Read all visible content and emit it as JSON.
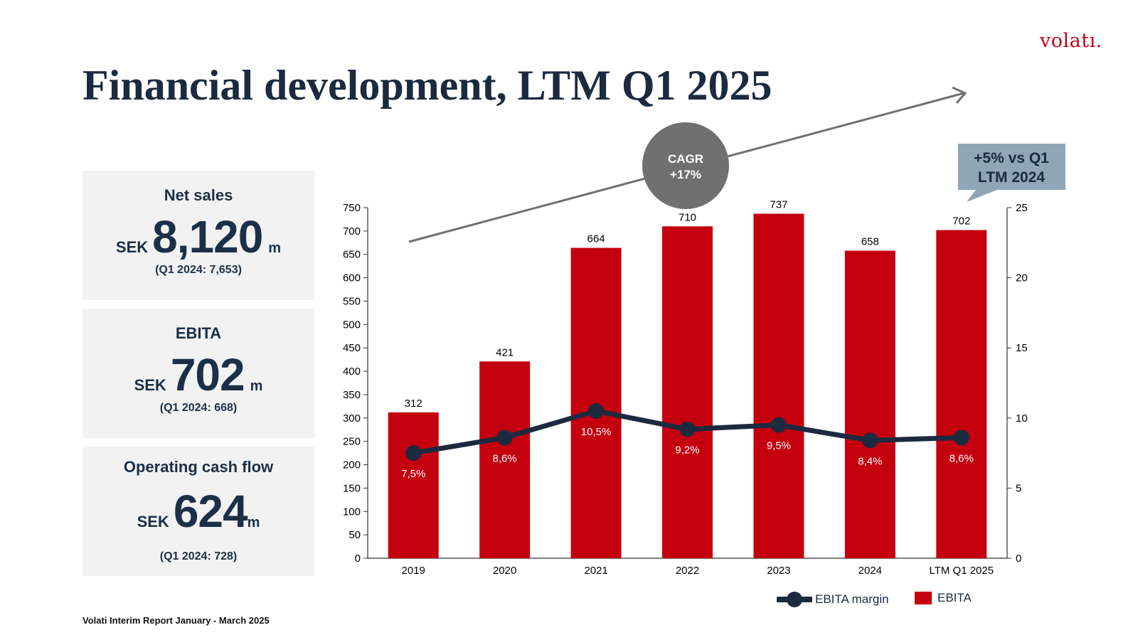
{
  "brand": {
    "logo_text": "volatı."
  },
  "page": {
    "title": "Financial development, LTM Q1 2025"
  },
  "kpis": [
    {
      "title": "Net sales",
      "currency": "SEK",
      "value": "8,120",
      "unit": "m",
      "compare": "(Q1 2024: 7,653)"
    },
    {
      "title": "EBITA",
      "currency": "SEK",
      "value": "702",
      "unit": "m",
      "compare": "(Q1 2024: 668)"
    },
    {
      "title": "Operating cash flow",
      "currency": "SEK",
      "value": "624",
      "unit": "m",
      "compare": "(Q1 2024: 728)"
    }
  ],
  "footer": {
    "text": "Volati Interim Report January - March 2025"
  },
  "colors": {
    "bar": "#c4000f",
    "line": "#1b2a3f",
    "cagr_bubble": "#707070",
    "callout": "#8fa6b7",
    "axis": "#333333"
  },
  "chart_data": {
    "type": "bar",
    "categories": [
      "2019",
      "2020",
      "2021",
      "2022",
      "2023",
      "2024",
      "LTM Q1 2025"
    ],
    "series": [
      {
        "name": "EBITA",
        "type": "bar",
        "axis": "left",
        "values": [
          312,
          421,
          664,
          710,
          737,
          658,
          702
        ]
      },
      {
        "name": "EBITA margin",
        "type": "line",
        "axis": "right",
        "values": [
          7.5,
          8.6,
          10.5,
          9.2,
          9.5,
          8.4,
          8.6
        ],
        "labels": [
          "7,5%",
          "8,6%",
          "10,5%",
          "9,2%",
          "9,5%",
          "8,4%",
          "8,6%"
        ]
      }
    ],
    "y_left": {
      "min": 0,
      "max": 750,
      "step": 50
    },
    "y_right": {
      "min": 0,
      "max": 25,
      "step": 5
    },
    "annotations": {
      "cagr": {
        "label": "CAGR",
        "value": "+17%"
      },
      "callout": {
        "line1": "+5% vs Q1",
        "line2": "LTM 2024"
      }
    },
    "legend": [
      {
        "name": "EBITA margin",
        "kind": "line"
      },
      {
        "name": "EBITA",
        "kind": "bar"
      }
    ],
    "legend_position": "bottom-right"
  }
}
